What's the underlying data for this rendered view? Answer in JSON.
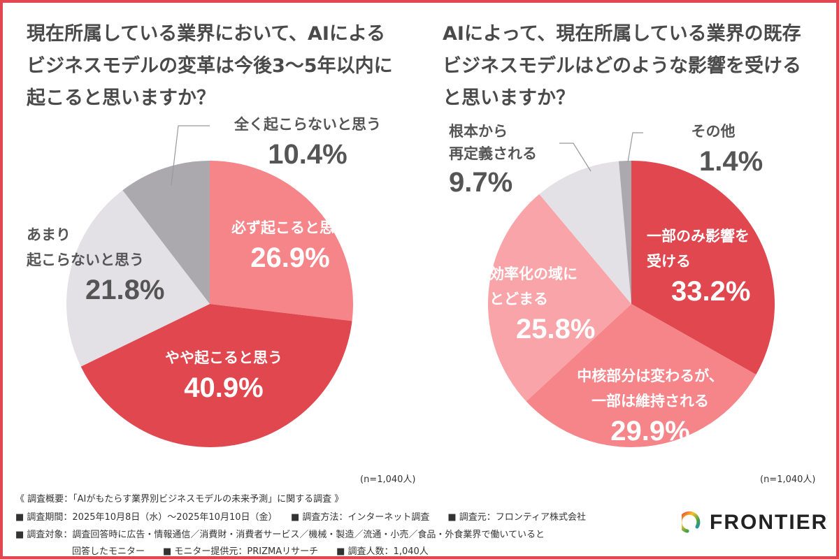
{
  "chart_data": [
    {
      "type": "pie",
      "title": "現在所属している業界において、AIによる\nビジネスモデルの変革は今後3〜5年以内に\n起こると思いますか？",
      "slices": [
        {
          "label": "必ず起こると思う",
          "value": 26.9,
          "display": "26.9%",
          "color": "#F6858A"
        },
        {
          "label": "やや起こると思う",
          "value": 40.9,
          "display": "40.9%",
          "color": "#E0474F"
        },
        {
          "label": "あまり\n起こらないと思う",
          "value": 21.8,
          "display": "21.8%",
          "color": "#E3E1E5"
        },
        {
          "label": "全く起こらないと思う",
          "value": 10.4,
          "display": "10.4%",
          "color": "#ABA9AD"
        }
      ],
      "note": "(n=1,040人)"
    },
    {
      "type": "pie",
      "title": "AIによって、現在所属している業界の既存\nビジネスモデルはどのような影響を受ける\nと思いますか？",
      "slices": [
        {
          "label": "一部のみ影響を\n受ける",
          "value": 33.2,
          "display": "33.2%",
          "color": "#E0474F"
        },
        {
          "label": "中核部分は変わるが、\n一部は維持される",
          "value": 29.9,
          "display": "29.9%",
          "color": "#F6858A"
        },
        {
          "label": "効率化の域に\nとどまる",
          "value": 25.8,
          "display": "25.8%",
          "color": "#F9A4A8"
        },
        {
          "label": "根本から\n再定義される",
          "value": 9.7,
          "display": "9.7%",
          "color": "#E3E1E5"
        },
        {
          "label": "その他",
          "value": 1.4,
          "display": "1.4%",
          "color": "#ABA9AD"
        }
      ],
      "note": "(n=1,040人)"
    }
  ],
  "footer": {
    "line1": "《 調査概要：「AIがもたらす業界別ビジネスモデルの未来予測」に関する調査 》",
    "line2": "■ 調査期間：2025年10月8日（水）〜2025年10月10日（金）　　■ 調査方法：インターネット調査　　■ 調査元：フロンティア株式会社",
    "line3": "■ 調査対象：調査回答時に広告・情報通信／消費財・消費者サービス／機械・製造／流通・小売／食品・外食業界で働いていると",
    "line4": "回答したモニター　　■ モニター提供元：PRIZMAリサーチ　　■ 調査人数：1,040人"
  },
  "logo": {
    "text": "FRONTIER"
  }
}
